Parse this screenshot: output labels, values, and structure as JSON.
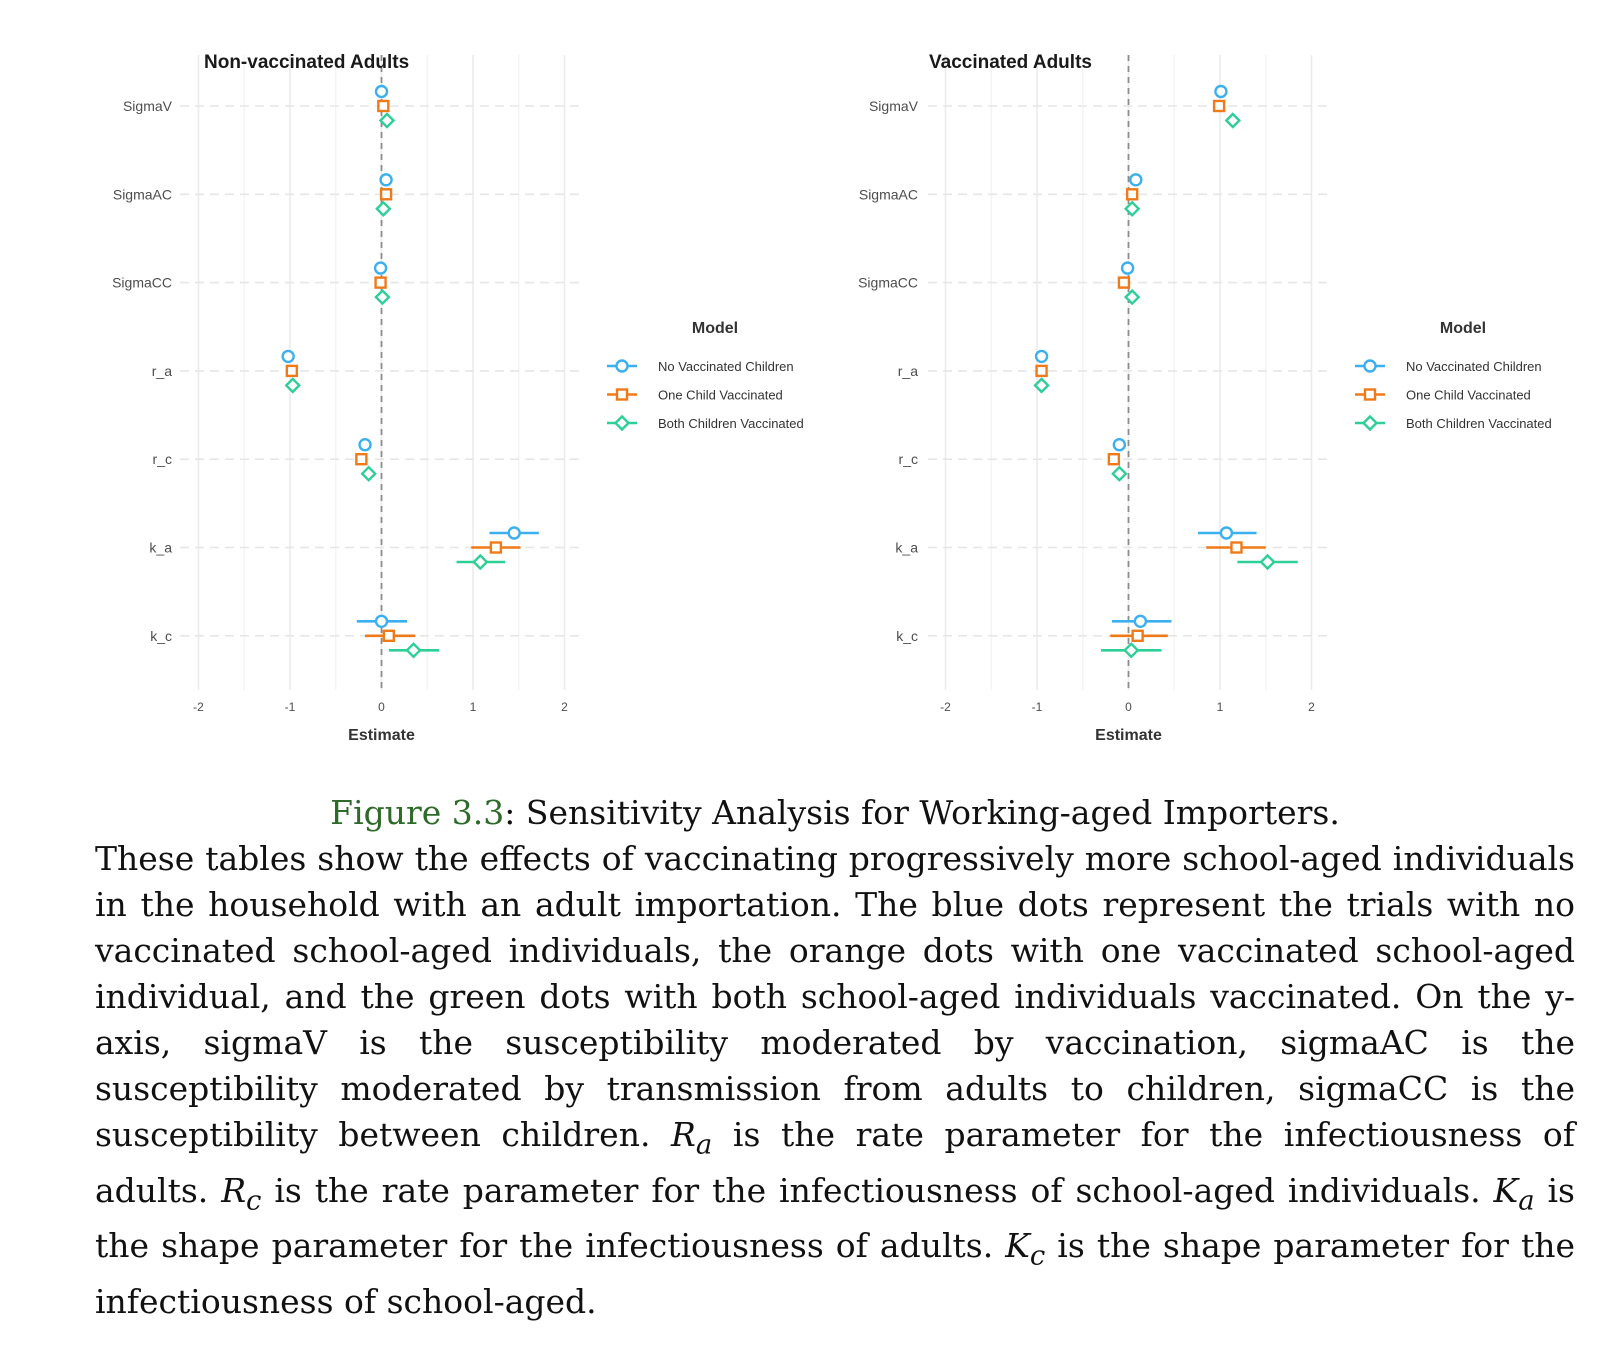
{
  "chart_data": [
    {
      "type": "scatter",
      "title": "Non-vaccinated Adults",
      "xlabel": "Estimate",
      "ylabel": "",
      "xlim": [
        -2,
        2
      ],
      "xticks": [
        -2,
        -1,
        0,
        1,
        2
      ],
      "categories": [
        "SigmaV",
        "SigmaAC",
        "SigmaCC",
        "r_a",
        "r_c",
        "k_a",
        "k_c"
      ],
      "reference_line": 0,
      "series": [
        {
          "name": "No Vaccinated Children",
          "values": [
            0.0,
            0.05,
            -0.01,
            -1.02,
            -0.18,
            1.45,
            0.0
          ],
          "ci_low": [
            null,
            null,
            null,
            null,
            null,
            1.18,
            -0.27
          ],
          "ci_high": [
            null,
            null,
            null,
            null,
            null,
            1.72,
            0.28
          ]
        },
        {
          "name": "One Child Vaccinated",
          "values": [
            0.02,
            0.05,
            -0.01,
            -0.98,
            -0.22,
            1.25,
            0.08
          ],
          "ci_low": [
            null,
            null,
            null,
            null,
            null,
            0.98,
            -0.18
          ],
          "ci_high": [
            null,
            null,
            null,
            null,
            null,
            1.52,
            0.37
          ]
        },
        {
          "name": "Both Children Vaccinated",
          "values": [
            0.06,
            0.02,
            0.01,
            -0.97,
            -0.14,
            1.08,
            0.35
          ],
          "ci_low": [
            null,
            null,
            null,
            null,
            null,
            0.82,
            0.08
          ],
          "ci_high": [
            null,
            null,
            null,
            null,
            null,
            1.35,
            0.63
          ]
        }
      ]
    },
    {
      "type": "scatter",
      "title": "Vaccinated Adults",
      "xlabel": "Estimate",
      "ylabel": "",
      "xlim": [
        -2,
        2
      ],
      "xticks": [
        -2,
        -1,
        0,
        1,
        2
      ],
      "categories": [
        "SigmaV",
        "SigmaAC",
        "SigmaCC",
        "r_a",
        "r_c",
        "k_a",
        "k_c"
      ],
      "reference_line": 0,
      "series": [
        {
          "name": "No Vaccinated Children",
          "values": [
            1.01,
            0.08,
            -0.01,
            -0.95,
            -0.1,
            1.07,
            0.13
          ],
          "ci_low": [
            null,
            null,
            null,
            null,
            null,
            0.76,
            -0.18
          ],
          "ci_high": [
            null,
            null,
            null,
            null,
            null,
            1.4,
            0.47
          ]
        },
        {
          "name": "One Child Vaccinated",
          "values": [
            0.99,
            0.04,
            -0.05,
            -0.95,
            -0.16,
            1.18,
            0.1
          ],
          "ci_low": [
            null,
            null,
            null,
            null,
            null,
            0.85,
            -0.2
          ],
          "ci_high": [
            null,
            null,
            null,
            null,
            null,
            1.5,
            0.43
          ]
        },
        {
          "name": "Both Children Vaccinated",
          "values": [
            1.14,
            0.04,
            0.04,
            -0.95,
            -0.1,
            1.52,
            0.03
          ],
          "ci_low": [
            null,
            null,
            null,
            null,
            null,
            1.19,
            -0.3
          ],
          "ci_high": [
            null,
            null,
            null,
            null,
            null,
            1.85,
            0.36
          ]
        }
      ]
    }
  ],
  "legend": {
    "title": "Model",
    "placement": "right",
    "items": [
      {
        "label": "No Vaccinated Children",
        "shape": "circle",
        "color": "#3cb0ef"
      },
      {
        "label": "One Child Vaccinated",
        "shape": "square",
        "color": "#ef7a1a"
      },
      {
        "label": "Both Children Vaccinated",
        "shape": "diamond",
        "color": "#2ecf97"
      }
    ]
  },
  "caption": {
    "figure_label": "Figure 3.3",
    "title": ": Sensitivity Analysis for Working-aged Importers.",
    "body_1": "These tables show the effects of vaccinating progressively more school-aged individuals in the household with an adult importation. The blue dots represent the trials with no vaccinated school-aged individuals, the orange dots with one vaccinated school-aged individual, and the green dots with both school-aged individuals vaccinated. On the y-axis, sigmaV is the susceptibility moderated by vaccination, sigmaAC is the susceptibility moderated by transmission from adults to children, sigmaCC is the susceptibility between children. ",
    "ra_sym": "R",
    "ra_sub": "a",
    "body_2": " is the rate parameter for the infectiousness of adults. ",
    "rc_sym": "R",
    "rc_sub": "c",
    "body_3": " is the rate parameter for the infectiousness of school-aged individuals. ",
    "ka_sym": "K",
    "ka_sub": "a",
    "body_4": " is the shape parameter for the infectiousness of adults. ",
    "kc_sym": "K",
    "kc_sub": "c",
    "body_5": " is the shape parameter for the infectiousness of school-aged."
  }
}
